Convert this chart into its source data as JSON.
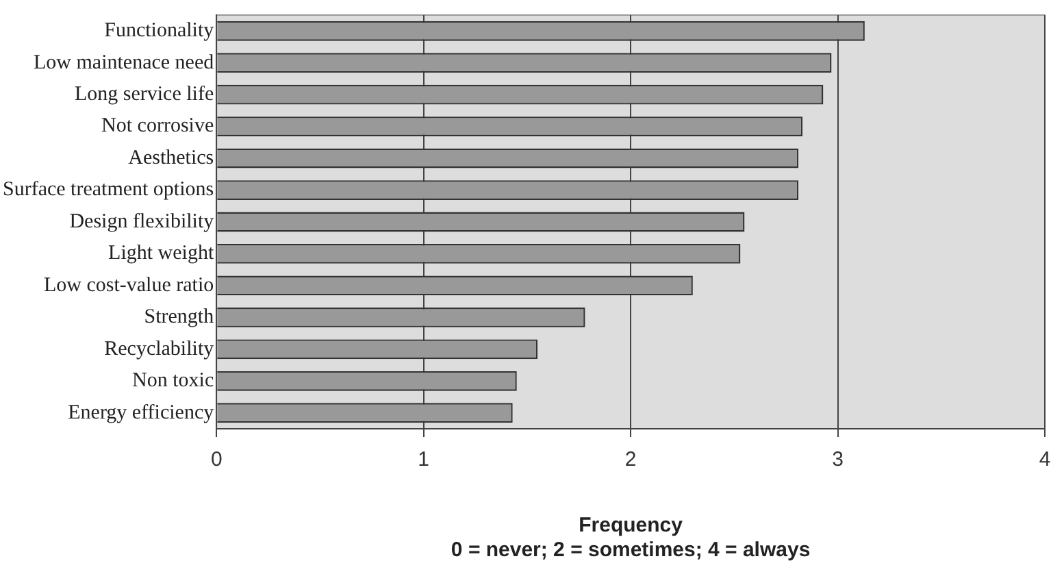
{
  "chart_data": {
    "type": "bar",
    "orientation": "horizontal",
    "xlabel": "Frequency",
    "annotations": [
      "0 = never; 2 = sometimes; 4 = always"
    ],
    "categories": [
      "Functionality",
      "Low maintenace need",
      "Long service life",
      "Not corrosive",
      "Aesthetics",
      "Surface treatment options",
      "Design flexibility",
      "Light weight",
      "Low cost-value ratio",
      "Strength",
      "Recyclability",
      "Non toxic",
      "Energy efficiency"
    ],
    "values": [
      3.13,
      2.97,
      2.93,
      2.83,
      2.81,
      2.81,
      2.55,
      2.53,
      2.3,
      1.78,
      1.55,
      1.45,
      1.43
    ],
    "color": "#999999",
    "xlim": [
      0,
      4
    ],
    "xticks": [
      0,
      1,
      2,
      3,
      4
    ],
    "grid": "x",
    "legend": false
  }
}
